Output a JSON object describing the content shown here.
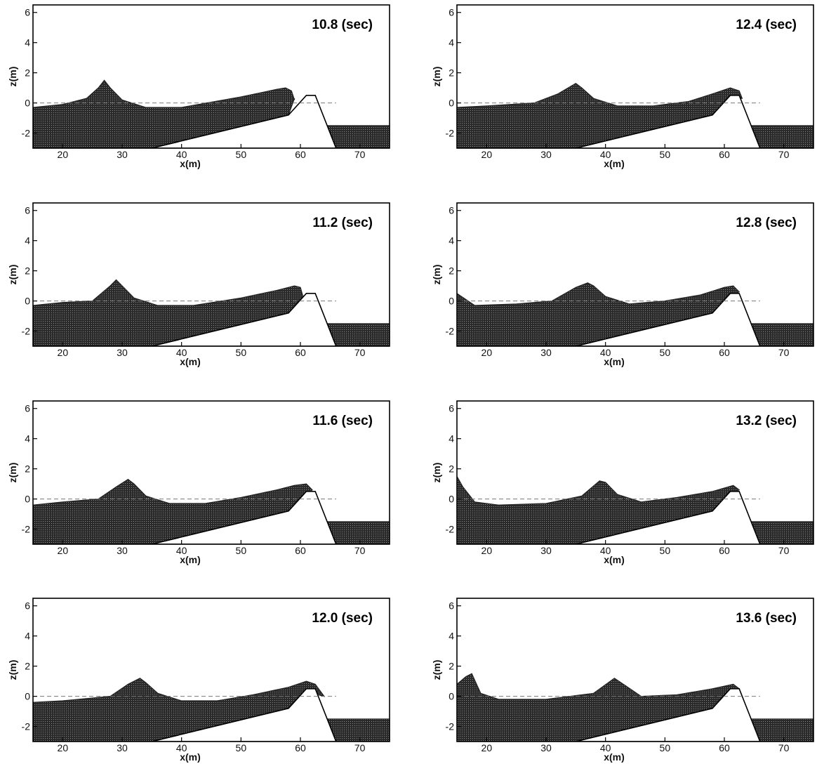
{
  "chart_data": [
    {
      "type": "area",
      "title": "10.8 (sec)",
      "xlabel": "x(m)",
      "ylabel": "z(m)",
      "xlim": [
        15,
        75
      ],
      "ylim": [
        -3,
        6.5
      ],
      "xticks": [
        20,
        30,
        40,
        50,
        60,
        70
      ],
      "yticks": [
        -2,
        0,
        2,
        4,
        6
      ],
      "still_water_level": 0,
      "series": [
        {
          "x": [
            15,
            20,
            24,
            26,
            27,
            28,
            30,
            34,
            40,
            50,
            56,
            57.5,
            58.5,
            59
          ],
          "values": [
            -0.3,
            -0.1,
            0.3,
            1.0,
            1.5,
            1.0,
            0.2,
            -0.3,
            -0.3,
            0.4,
            0.9,
            1.0,
            0.8,
            0.2
          ]
        }
      ]
    },
    {
      "type": "area",
      "title": "11.2 (sec)",
      "xlabel": "x(m)",
      "ylabel": "z(m)",
      "xlim": [
        15,
        75
      ],
      "ylim": [
        -3,
        6.5
      ],
      "xticks": [
        20,
        30,
        40,
        50,
        60,
        70
      ],
      "yticks": [
        -2,
        0,
        2,
        4,
        6
      ],
      "still_water_level": 0,
      "series": [
        {
          "x": [
            15,
            20,
            25,
            28,
            29,
            30,
            32,
            36,
            42,
            50,
            56,
            59,
            60,
            60.5
          ],
          "values": [
            -0.3,
            -0.1,
            0.0,
            1.0,
            1.4,
            1.0,
            0.2,
            -0.3,
            -0.3,
            0.2,
            0.7,
            1.0,
            0.9,
            0.2
          ]
        }
      ]
    },
    {
      "type": "area",
      "title": "11.6 (sec)",
      "xlabel": "x(m)",
      "ylabel": "z(m)",
      "xlim": [
        15,
        75
      ],
      "ylim": [
        -3,
        6.5
      ],
      "xticks": [
        20,
        30,
        40,
        50,
        60,
        70
      ],
      "yticks": [
        -2,
        0,
        2,
        4,
        6
      ],
      "still_water_level": 0,
      "series": [
        {
          "x": [
            15,
            20,
            26,
            29,
            31,
            32,
            34,
            38,
            44,
            50,
            56,
            59,
            61,
            62
          ],
          "values": [
            -0.4,
            -0.2,
            0.0,
            0.8,
            1.3,
            1.0,
            0.2,
            -0.3,
            -0.3,
            0.1,
            0.6,
            0.9,
            1.0,
            0.6
          ]
        }
      ]
    },
    {
      "type": "area",
      "title": "12.0 (sec)",
      "xlabel": "x(m)",
      "ylabel": "z(m)",
      "xlim": [
        15,
        75
      ],
      "ylim": [
        -3,
        6.5
      ],
      "xticks": [
        20,
        30,
        40,
        50,
        60,
        70
      ],
      "yticks": [
        -2,
        0,
        2,
        4,
        6
      ],
      "still_water_level": 0,
      "series": [
        {
          "x": [
            15,
            20,
            28,
            31,
            33,
            34,
            36,
            40,
            46,
            52,
            58,
            61,
            62.5,
            64
          ],
          "values": [
            -0.4,
            -0.3,
            0.0,
            0.8,
            1.2,
            0.9,
            0.2,
            -0.3,
            -0.3,
            0.1,
            0.6,
            1.0,
            0.8,
            0.0
          ]
        }
      ]
    },
    {
      "type": "area",
      "title": "12.4 (sec)",
      "xlabel": "x(m)",
      "ylabel": "z(m)",
      "xlim": [
        15,
        75
      ],
      "ylim": [
        -3,
        6.5
      ],
      "xticks": [
        20,
        30,
        40,
        50,
        60,
        70
      ],
      "yticks": [
        -2,
        0,
        2,
        4,
        6
      ],
      "still_water_level": 0,
      "series": [
        {
          "x": [
            15,
            20,
            28,
            32,
            35,
            36,
            38,
            42,
            48,
            54,
            58,
            61,
            62.5,
            63
          ],
          "values": [
            -0.3,
            -0.2,
            0.0,
            0.6,
            1.3,
            1.0,
            0.3,
            -0.2,
            -0.2,
            0.1,
            0.6,
            1.0,
            0.8,
            0.3
          ]
        }
      ]
    },
    {
      "type": "area",
      "title": "12.8 (sec)",
      "xlabel": "x(m)",
      "ylabel": "z(m)",
      "xlim": [
        15,
        75
      ],
      "ylim": [
        -3,
        6.5
      ],
      "xticks": [
        20,
        30,
        40,
        50,
        60,
        70
      ],
      "yticks": [
        -2,
        0,
        2,
        4,
        6
      ],
      "still_water_level": 0,
      "series": [
        {
          "x": [
            15,
            18,
            25,
            31,
            35,
            37,
            38,
            40,
            44,
            50,
            56,
            60,
            61.5,
            62.5
          ],
          "values": [
            0.5,
            -0.3,
            -0.2,
            0.0,
            0.9,
            1.2,
            1.0,
            0.3,
            -0.2,
            0.0,
            0.4,
            0.9,
            1.0,
            0.6
          ]
        }
      ]
    },
    {
      "type": "area",
      "title": "13.2 (sec)",
      "xlabel": "x(m)",
      "ylabel": "z(m)",
      "xlim": [
        15,
        75
      ],
      "ylim": [
        -3,
        6.5
      ],
      "xticks": [
        20,
        30,
        40,
        50,
        60,
        70
      ],
      "yticks": [
        -2,
        0,
        2,
        4,
        6
      ],
      "still_water_level": 0,
      "series": [
        {
          "x": [
            15,
            16,
            18,
            22,
            30,
            36,
            39,
            40,
            42,
            46,
            52,
            58,
            61.5,
            62.5
          ],
          "values": [
            1.5,
            0.8,
            -0.2,
            -0.4,
            -0.3,
            0.2,
            1.2,
            1.1,
            0.3,
            -0.2,
            0.1,
            0.5,
            0.9,
            0.6
          ]
        }
      ]
    },
    {
      "type": "area",
      "title": "13.6 (sec)",
      "xlabel": "x(m)",
      "ylabel": "z(m)",
      "xlim": [
        15,
        75
      ],
      "ylim": [
        -3,
        6.5
      ],
      "xticks": [
        20,
        30,
        40,
        50,
        60,
        70
      ],
      "yticks": [
        -2,
        0,
        2,
        4,
        6
      ],
      "still_water_level": 0,
      "series": [
        {
          "x": [
            15,
            16.5,
            17.5,
            19,
            22,
            30,
            38,
            41.5,
            43,
            46,
            52,
            58,
            61.5,
            62.5
          ],
          "values": [
            0.8,
            1.3,
            1.5,
            0.2,
            -0.2,
            -0.2,
            0.2,
            1.2,
            0.8,
            0.0,
            0.1,
            0.5,
            0.8,
            0.5
          ]
        }
      ]
    }
  ]
}
